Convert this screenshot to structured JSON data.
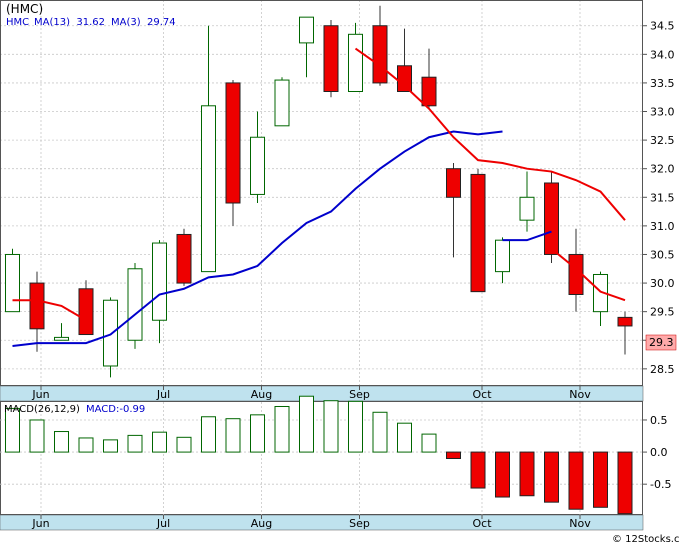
{
  "chart_data": [
    {
      "type": "candlestick",
      "title": "(HMC)",
      "legend": [
        {
          "text": "HMC",
          "color": "#0000cc"
        },
        {
          "text": "MA(13)  31.62",
          "color": "#0000cc"
        },
        {
          "text": "MA(3)  29.74",
          "color": "#0000cc"
        }
      ],
      "last_price_label": "29.3",
      "ylim": [
        28.2,
        34.95
      ],
      "y_ticks": [
        "28.5",
        "29.0",
        "29.5",
        "30.0",
        "30.5",
        "31.0",
        "31.5",
        "32.0",
        "32.5",
        "33.0",
        "33.5",
        "34.0",
        "34.5"
      ],
      "x_labels": [
        "Jun",
        "Jul",
        "Aug",
        "Sep",
        "Oct",
        "Nov"
      ],
      "x_label_index": [
        1,
        6,
        10,
        14,
        19,
        23
      ],
      "candles": [
        {
          "o": 29.5,
          "h": 30.6,
          "l": 29.5,
          "c": 30.5
        },
        {
          "o": 30.0,
          "h": 30.2,
          "l": 28.8,
          "c": 29.2
        },
        {
          "o": 29.0,
          "h": 29.3,
          "l": 29.0,
          "c": 29.05
        },
        {
          "o": 29.9,
          "h": 30.05,
          "l": 29.1,
          "c": 29.1
        },
        {
          "o": 28.55,
          "h": 29.75,
          "l": 28.35,
          "c": 29.7
        },
        {
          "o": 29.0,
          "h": 30.35,
          "l": 28.85,
          "c": 30.25
        },
        {
          "o": 29.35,
          "h": 30.75,
          "l": 28.95,
          "c": 30.7
        },
        {
          "o": 30.85,
          "h": 30.95,
          "l": 29.95,
          "c": 30.0
        },
        {
          "o": 30.2,
          "h": 34.5,
          "l": 30.2,
          "c": 33.1
        },
        {
          "o": 33.5,
          "h": 33.55,
          "l": 31.0,
          "c": 31.4
        },
        {
          "o": 31.55,
          "h": 33.0,
          "l": 31.4,
          "c": 32.55
        },
        {
          "o": 32.75,
          "h": 33.6,
          "l": 32.75,
          "c": 33.55
        },
        {
          "o": 34.2,
          "h": 34.65,
          "l": 33.6,
          "c": 34.65
        },
        {
          "o": 34.5,
          "h": 34.6,
          "l": 33.25,
          "c": 33.35
        },
        {
          "o": 33.35,
          "h": 34.55,
          "l": 33.35,
          "c": 34.35
        },
        {
          "o": 34.5,
          "h": 34.85,
          "l": 33.45,
          "c": 33.5
        },
        {
          "o": 33.8,
          "h": 34.45,
          "l": 33.35,
          "c": 33.35
        },
        {
          "o": 33.6,
          "h": 34.1,
          "l": 33.05,
          "c": 33.1
        },
        {
          "o": 32.0,
          "h": 32.1,
          "l": 30.45,
          "c": 31.5
        },
        {
          "o": 31.9,
          "h": 32.0,
          "l": 29.85,
          "c": 29.85
        },
        {
          "o": 30.2,
          "h": 30.8,
          "l": 30.0,
          "c": 30.75
        },
        {
          "o": 31.1,
          "h": 31.95,
          "l": 30.9,
          "c": 31.5
        },
        {
          "o": 31.75,
          "h": 31.95,
          "l": 30.35,
          "c": 30.5
        },
        {
          "o": 30.5,
          "h": 30.95,
          "l": 29.5,
          "c": 29.8
        },
        {
          "o": 29.5,
          "h": 30.2,
          "l": 29.25,
          "c": 30.15
        },
        {
          "o": 29.4,
          "h": 29.5,
          "l": 28.75,
          "c": 29.25
        }
      ],
      "ma13": {
        "name": "MA(13)",
        "color": "#0000cc",
        "values": [
          28.9,
          28.95,
          28.95,
          28.95,
          29.1,
          29.45,
          29.8,
          29.9,
          30.1,
          30.15,
          30.3,
          30.7,
          31.05,
          31.25,
          31.65,
          32.0,
          32.3,
          32.55,
          32.65,
          32.6,
          32.65,
          null,
          null,
          null,
          null,
          null
        ],
        "extra": [
          [
            20,
            30.75
          ],
          [
            21,
            30.75
          ],
          [
            22,
            30.9
          ]
        ]
      },
      "ma3": {
        "name": "MA(3)",
        "color": "#ee0000",
        "values": [
          29.7,
          29.7,
          29.6,
          29.35,
          null,
          null,
          null,
          null,
          null,
          null,
          null,
          null,
          null,
          null,
          34.1,
          33.8,
          33.45,
          33.05,
          32.55,
          32.15,
          32.1,
          32.0,
          31.95,
          31.8,
          31.6,
          31.1
        ],
        "extra": [
          [
            22,
            30.6
          ],
          [
            23,
            30.25
          ],
          [
            24,
            29.85
          ],
          [
            25,
            29.7
          ]
        ]
      }
    },
    {
      "type": "bar",
      "title": "MACD(26,12,9)",
      "subtitle": "MACD:-0.99",
      "ylim": [
        -0.98,
        0.78
      ],
      "y_ticks": [
        "0.5",
        "0.0",
        "-0.5"
      ],
      "x_labels": [
        "Jun",
        "Jul",
        "Aug",
        "Sep",
        "Oct",
        "Nov"
      ],
      "values": [
        0.68,
        0.5,
        0.32,
        0.22,
        0.19,
        0.26,
        0.31,
        0.23,
        0.55,
        0.52,
        0.58,
        0.71,
        0.87,
        0.8,
        0.79,
        0.62,
        0.45,
        0.28,
        -0.1,
        -0.56,
        -0.7,
        -0.68,
        -0.78,
        -0.89,
        -0.86,
        -0.96
      ]
    }
  ],
  "footer": {
    "copyright": "© 12Stocks.com"
  }
}
